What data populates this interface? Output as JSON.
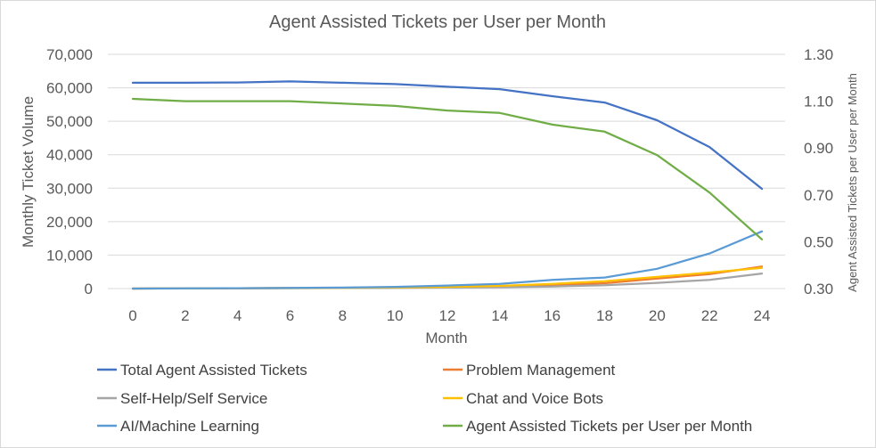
{
  "chart_data": {
    "type": "line",
    "title": "Agent Assisted Tickets per User per Month",
    "xlabel": "Month",
    "ylabel": "Monthly Ticket Volume",
    "y2label": "Agent Assisted Tickets per User per Month",
    "x": [
      0,
      2,
      4,
      6,
      8,
      10,
      12,
      14,
      16,
      18,
      20,
      22,
      24
    ],
    "x_ticks": [
      "0",
      "2",
      "4",
      "6",
      "8",
      "10",
      "12",
      "14",
      "16",
      "18",
      "20",
      "22",
      "24"
    ],
    "ylim": [
      0,
      70000
    ],
    "y_ticks": [
      0,
      10000,
      20000,
      30000,
      40000,
      50000,
      60000,
      70000
    ],
    "y_tick_labels": [
      "0",
      "10,000",
      "20,000",
      "30,000",
      "40,000",
      "50,000",
      "60,000",
      "70,000"
    ],
    "y2lim": [
      0.3,
      1.3
    ],
    "y2_ticks": [
      0.3,
      0.5,
      0.7,
      0.9,
      1.1,
      1.3
    ],
    "y2_tick_labels": [
      "0.30",
      "0.50",
      "0.70",
      "0.90",
      "1.10",
      "1.30"
    ],
    "grid": true,
    "legend_position": "bottom",
    "series": [
      {
        "name": "Total Agent Assisted Tickets",
        "axis": "left",
        "color": "#4472c4",
        "values": [
          61500,
          61500,
          61600,
          61900,
          61500,
          61100,
          60300,
          59600,
          57500,
          55600,
          50300,
          42300,
          29800
        ]
      },
      {
        "name": "Problem Management",
        "axis": "left",
        "color": "#ed7d31",
        "values": [
          0,
          50,
          100,
          150,
          200,
          300,
          400,
          600,
          1000,
          1600,
          3000,
          4300,
          6600
        ]
      },
      {
        "name": "Self-Help/Self Service",
        "axis": "left",
        "color": "#a5a5a5",
        "values": [
          0,
          30,
          60,
          100,
          150,
          200,
          300,
          400,
          600,
          1000,
          1700,
          2600,
          4500
        ]
      },
      {
        "name": "Chat and Voice Bots",
        "axis": "left",
        "color": "#ffc000",
        "values": [
          0,
          50,
          100,
          150,
          250,
          350,
          500,
          800,
          1400,
          2200,
          3500,
          4800,
          6200
        ]
      },
      {
        "name": "AI/Machine Learning",
        "axis": "left",
        "color": "#5b9bd5",
        "values": [
          0,
          50,
          100,
          200,
          300,
          500,
          900,
          1400,
          2600,
          3300,
          5900,
          10500,
          17100
        ]
      },
      {
        "name": "Agent Assisted Tickets per User per Month",
        "axis": "right",
        "color": "#70ad47",
        "values": [
          1.11,
          1.1,
          1.1,
          1.1,
          1.09,
          1.08,
          1.06,
          1.05,
          1.0,
          0.97,
          0.87,
          0.71,
          0.51
        ]
      }
    ]
  }
}
